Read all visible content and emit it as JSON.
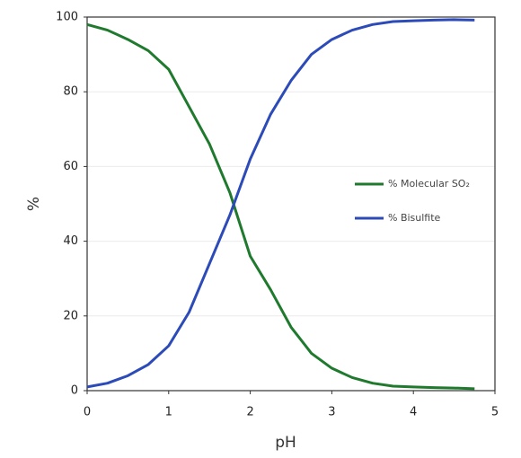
{
  "chart_data": {
    "type": "line",
    "x": [
      0,
      0.25,
      0.5,
      0.75,
      1.0,
      1.25,
      1.5,
      1.75,
      2.0,
      2.25,
      2.5,
      2.75,
      3.0,
      3.25,
      3.5,
      3.75,
      4.0,
      4.25,
      4.5,
      4.75
    ],
    "series": [
      {
        "name": "% Molecular SO₂",
        "color": "#1f7a2e",
        "values": [
          98,
          96.5,
          94,
          91,
          86,
          76,
          66,
          53,
          36,
          27,
          17,
          10,
          6,
          3.5,
          2,
          1.2,
          1,
          0.8,
          0.7,
          0.5
        ]
      },
      {
        "name": "% Bisulfite",
        "color": "#2c4bb8",
        "values": [
          1,
          2,
          4,
          7,
          12,
          21,
          34,
          47,
          62,
          74,
          83,
          90,
          94,
          96.5,
          98,
          98.8,
          99,
          99.2,
          99.3,
          99.2
        ]
      }
    ],
    "xlabel": "pH",
    "ylabel": "%",
    "xlim": [
      0,
      5
    ],
    "ylim": [
      0,
      100
    ],
    "xticks": [
      0,
      1,
      2,
      3,
      4,
      5
    ],
    "yticks": [
      0,
      20,
      40,
      60,
      80,
      100
    ],
    "grid": true,
    "legend": "right"
  }
}
